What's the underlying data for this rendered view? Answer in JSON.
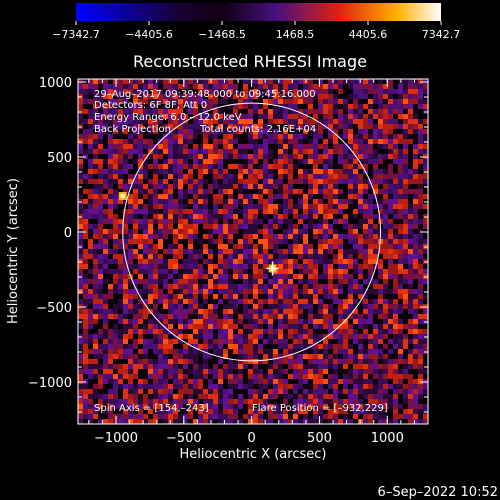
{
  "colorbar": {
    "tick_labels": [
      "-7342.7",
      "-4405.6",
      "-1468.5",
      "1468.5",
      "4405.6",
      "7342.7"
    ],
    "min": -7342.7,
    "max": 7342.7,
    "colors": [
      "#0000ff",
      "#1a0033",
      "#000000",
      "#5a1080",
      "#e02010",
      "#ffb000",
      "#ffffff"
    ]
  },
  "chart_data": {
    "type": "heatmap",
    "title": "Reconstructed RHESSI Image",
    "xlabel": "Heliocentric X (arcsec)",
    "ylabel": "Heliocentric Y (arcsec)",
    "xlim": [
      -1280,
      1300
    ],
    "ylim": [
      -1280,
      1020
    ],
    "xticks": [
      -1000,
      -500,
      0,
      500,
      1000
    ],
    "yticks": [
      -1000,
      -500,
      0,
      500,
      1000
    ],
    "xtick_labels": [
      "−1000",
      "−500",
      "0",
      "500",
      "1000"
    ],
    "ytick_labels": [
      "−1000",
      "−500",
      "0",
      "500",
      "1000"
    ],
    "solar_disk": {
      "center": [
        0,
        0
      ],
      "radius": 950
    },
    "marker": {
      "x": 154,
      "y": -243,
      "symbol": "+"
    },
    "bright_spots": [
      {
        "x": -950,
        "y": 240
      },
      {
        "x": 154,
        "y": -243
      }
    ],
    "annotations": [
      "29–Aug–2017 09:39:48.000 to 09:45:16.000",
      "Detectors: 6F 8F, Att 0",
      "Energy Range: 6.0 – 12.0 keV",
      "Back Projection",
      "Total counts: 2.16E+04",
      "Spin Axis = [154,–243]",
      "Flare Position = [–932,229]"
    ]
  },
  "footer": {
    "timestamp": "6–Sep–2022 10:52"
  }
}
